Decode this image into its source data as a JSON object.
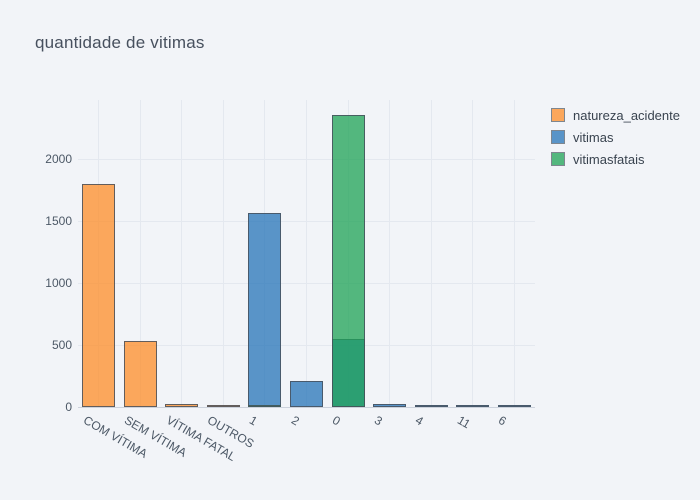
{
  "figure": {
    "background_color": "#f2f4f8",
    "gridline_color": "#e4e8ef",
    "axis_line_color": "#ccd2dc",
    "tick_label_color": "#4c5866",
    "title_color": "#47505e",
    "bar_border_color": "rgba(70,80,92,0.85)",
    "bar_opacity": 0.75
  },
  "chart_data": {
    "type": "bar",
    "subtype": "overlaid-histogram",
    "title": "quantidade de vitimas",
    "xlabel": "",
    "ylabel": "",
    "categories": [
      "COM VÍTIMA",
      "SEM VÍTIMA",
      "VÍTIMA FATAL",
      "OUTROS",
      "1",
      "2",
      "0",
      "3",
      "4",
      "11",
      "6"
    ],
    "yticks": [
      0,
      500,
      1000,
      1500,
      2000
    ],
    "ylim": [
      0,
      2480
    ],
    "grid": true,
    "legend_position": "top-right-outside",
    "series": [
      {
        "name": "natureza_acidente",
        "color": "#fe8d28",
        "values": [
          1800,
          535,
          22,
          6,
          0,
          0,
          0,
          0,
          0,
          0,
          0
        ]
      },
      {
        "name": "vitimas",
        "color": "#2574b8",
        "values": [
          0,
          0,
          0,
          0,
          1570,
          210,
          550,
          25,
          8,
          3,
          3
        ]
      },
      {
        "name": "vitimasfatais",
        "color": "#1da355",
        "values": [
          0,
          0,
          0,
          0,
          20,
          0,
          2360,
          0,
          0,
          0,
          0
        ]
      }
    ]
  }
}
